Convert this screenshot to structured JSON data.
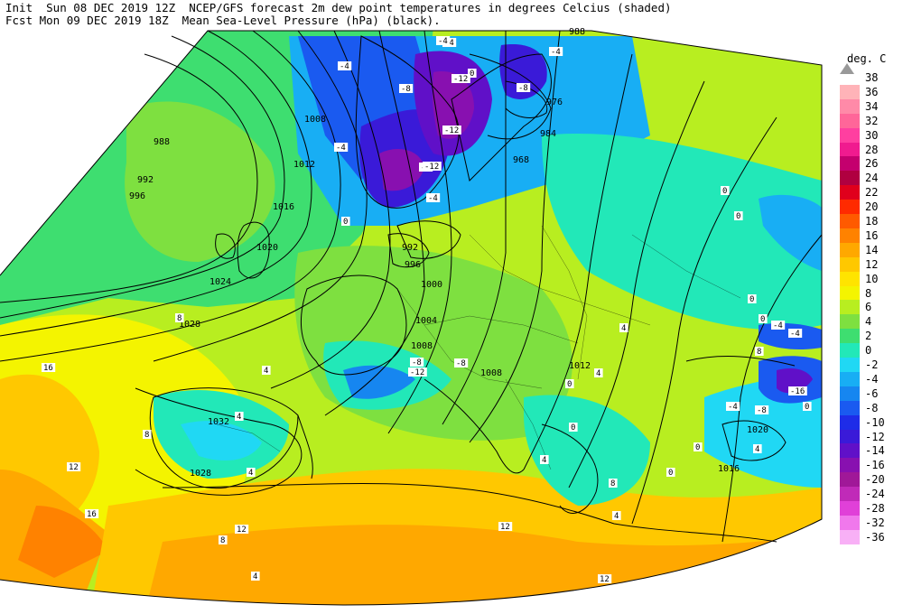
{
  "header": {
    "line1": "Init  Sun 08 DEC 2019 12Z  NCEP/GFS forecast 2m dew point temperatures in degrees Celcius (shaded)",
    "line2": "Fcst Mon 09 DEC 2019 18Z  Mean Sea-Level Pressure (hPa) (black)."
  },
  "legend": {
    "unit": "deg. C",
    "entries": [
      {
        "label": "38",
        "color": "#999999"
      },
      {
        "label": "36",
        "color": "#ffb3b8"
      },
      {
        "label": "34",
        "color": "#ff8aa8"
      },
      {
        "label": "32",
        "color": "#ff6699"
      },
      {
        "label": "30",
        "color": "#ff3fa0"
      },
      {
        "label": "28",
        "color": "#f01b8f"
      },
      {
        "label": "26",
        "color": "#c4006e"
      },
      {
        "label": "24",
        "color": "#b00040"
      },
      {
        "label": "22",
        "color": "#e0001c"
      },
      {
        "label": "20",
        "color": "#ff2a00"
      },
      {
        "label": "18",
        "color": "#ff5a00"
      },
      {
        "label": "16",
        "color": "#ff8200"
      },
      {
        "label": "14",
        "color": "#ffa800"
      },
      {
        "label": "12",
        "color": "#ffc800"
      },
      {
        "label": "10",
        "color": "#ffe400"
      },
      {
        "label": "8",
        "color": "#f4f400"
      },
      {
        "label": "6",
        "color": "#b8ee20"
      },
      {
        "label": "4",
        "color": "#7ee040"
      },
      {
        "label": "2",
        "color": "#3ede70"
      },
      {
        "label": "0",
        "color": "#22e8b8"
      },
      {
        "label": "-2",
        "color": "#20d8f4"
      },
      {
        "label": "-4",
        "color": "#18aef4"
      },
      {
        "label": "-6",
        "color": "#1686f0"
      },
      {
        "label": "-8",
        "color": "#1a5af0"
      },
      {
        "label": "-10",
        "color": "#1e2ce8"
      },
      {
        "label": "-12",
        "color": "#3a1ad8"
      },
      {
        "label": "-14",
        "color": "#6010c8"
      },
      {
        "label": "-16",
        "color": "#8810b0"
      },
      {
        "label": "-20",
        "color": "#a01898"
      },
      {
        "label": "-24",
        "color": "#c02ab8"
      },
      {
        "label": "-28",
        "color": "#e040d8"
      },
      {
        "label": "-32",
        "color": "#f078ec"
      },
      {
        "label": "-36",
        "color": "#f8b0f6"
      }
    ]
  },
  "isobar_labels": [
    "988",
    "992",
    "996",
    "1008",
    "1012",
    "1016",
    "1020",
    "1024",
    "1028",
    "1032",
    "1028",
    "1000",
    "1004",
    "1008",
    "1008",
    "1012",
    "984",
    "976",
    "968",
    "988",
    "1020",
    "1016",
    "992",
    "996"
  ],
  "temp_labels": [
    "-4",
    "-8",
    "-4",
    "-12",
    "-8",
    "-12",
    "-4",
    "-4",
    "-12",
    "-4",
    "-8",
    "-8",
    "-8",
    "-12",
    "-16",
    "-4",
    "-4",
    "0",
    "0",
    "0",
    "0",
    "0",
    "0",
    "0",
    "0",
    "0",
    "0",
    "0",
    "4",
    "4",
    "4",
    "4",
    "4",
    "4",
    "4",
    "8",
    "8",
    "8",
    "8",
    "8",
    "12",
    "12",
    "12",
    "12",
    "16",
    "16",
    "4",
    "4",
    "-4",
    "-8",
    "-4"
  ]
}
